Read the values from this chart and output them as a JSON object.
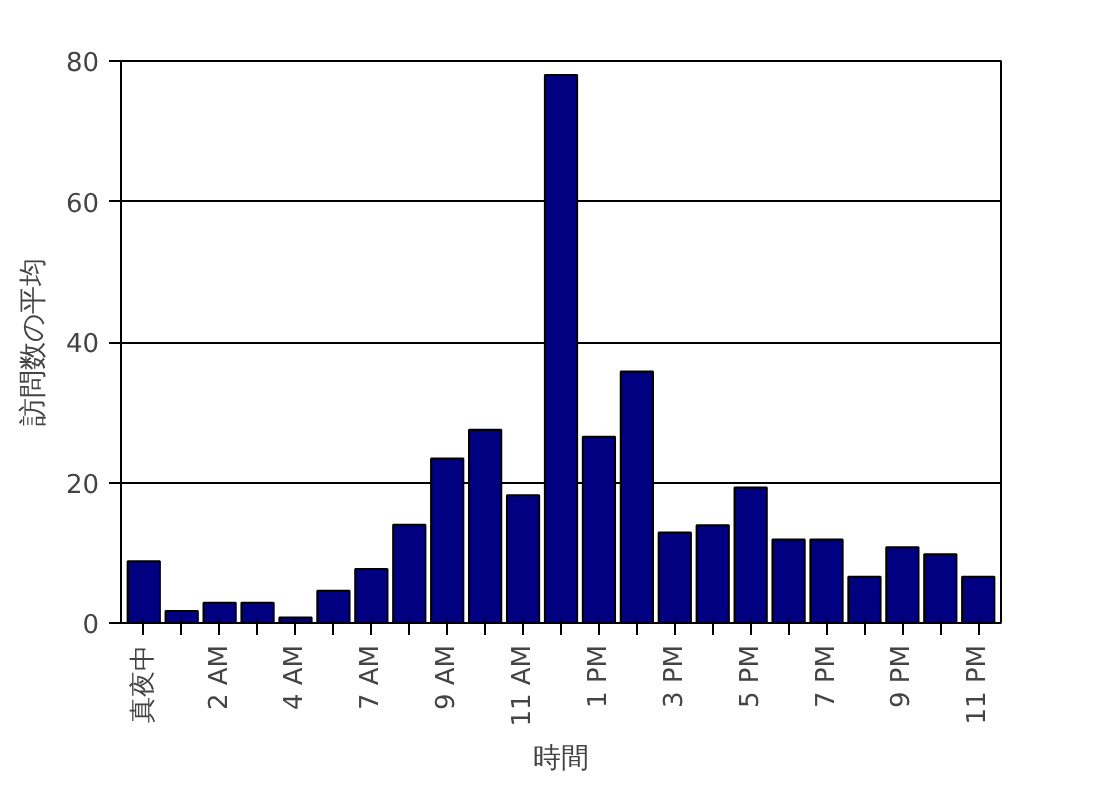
{
  "chart_data": {
    "type": "bar",
    "xlabel": "時間",
    "ylabel": "訪問数の平均",
    "categories": [
      "真夜中",
      null,
      "2 AM",
      null,
      "4 AM",
      null,
      "7 AM",
      null,
      "9 AM",
      null,
      "11 AM",
      null,
      "1 PM",
      null,
      "3 PM",
      null,
      "5 PM",
      null,
      "7 PM",
      null,
      "9 PM",
      null,
      "11 PM"
    ],
    "values": [
      8.8,
      1.7,
      2.9,
      2.9,
      0.8,
      4.6,
      7.7,
      14,
      23.4,
      27.5,
      18.2,
      78,
      26.5,
      35.8,
      12.9,
      13.9,
      19.3,
      11.9,
      11.9,
      6.6,
      10.8,
      9.8,
      6.6
    ],
    "color": "#000080",
    "ylim": [
      0,
      80
    ],
    "yticks": [
      0,
      20,
      40,
      60,
      80
    ],
    "grid": "y"
  }
}
